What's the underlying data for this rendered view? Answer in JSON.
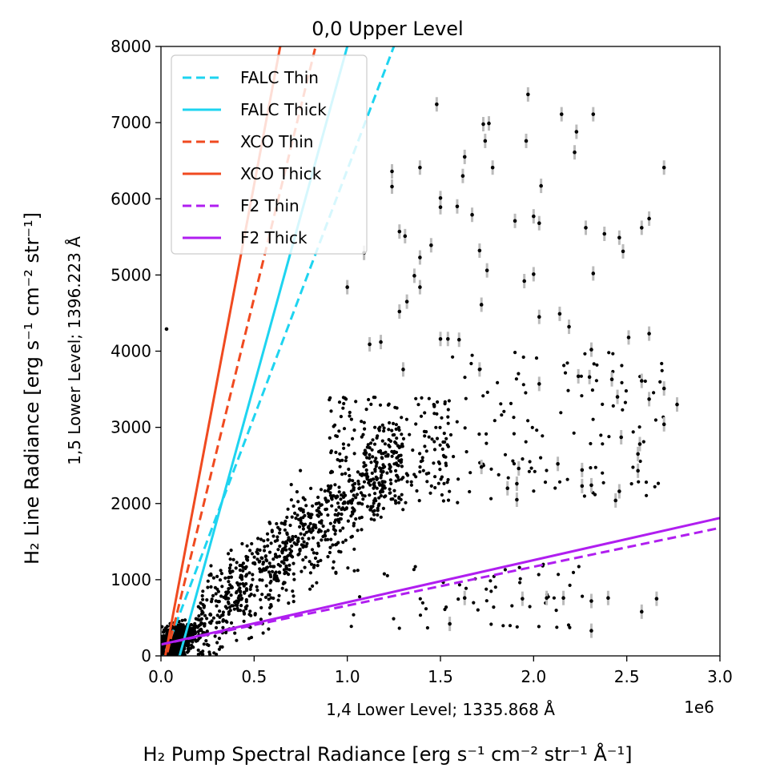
{
  "chart_data": {
    "type": "scatter",
    "title": "0,0 Upper Level",
    "xlabel": "H₂ Pump Spectral Radiance [erg s⁻¹ cm⁻² str⁻¹ Å⁻¹]",
    "xlabel_secondary": "1,4 Lower Level; 1335.868 Å",
    "ylabel": "H₂ Line Radiance [erg s⁻¹ cm⁻² str⁻¹]",
    "ylabel_secondary": "1,5 Lower Level; 1396.223 Å",
    "x_offset_label": "1e6",
    "xlim": [
      0,
      3.0
    ],
    "ylim": [
      0,
      8000
    ],
    "xticks": [
      0.0,
      0.5,
      1.0,
      1.5,
      2.0,
      2.5,
      3.0
    ],
    "xtick_labels": [
      "0.0",
      "0.5",
      "1.0",
      "1.5",
      "2.0",
      "2.5",
      "3.0"
    ],
    "yticks": [
      0,
      1000,
      2000,
      3000,
      4000,
      5000,
      6000,
      7000,
      8000
    ],
    "ytick_labels": [
      "0",
      "1000",
      "2000",
      "3000",
      "4000",
      "5000",
      "6000",
      "7000",
      "8000"
    ],
    "legend_position": "upper-left",
    "lines": [
      {
        "name": "FALC Thin",
        "style": "dashed",
        "color": "#1ed4f0",
        "x": [
          0.0,
          1.25
        ],
        "y": [
          -100,
          8000
        ]
      },
      {
        "name": "FALC Thick",
        "style": "solid",
        "color": "#1ed4f0",
        "x": [
          0.1,
          1.0
        ],
        "y": [
          0,
          8000
        ]
      },
      {
        "name": "XCO Thin",
        "style": "dashed",
        "color": "#f04a20",
        "x": [
          0.0,
          0.83
        ],
        "y": [
          -300,
          8000
        ]
      },
      {
        "name": "XCO Thick",
        "style": "solid",
        "color": "#f04a20",
        "x": [
          0.0,
          0.64
        ],
        "y": [
          -300,
          8000
        ]
      },
      {
        "name": "F2 Thin",
        "style": "dashed",
        "color": "#b01ef0",
        "x": [
          0.0,
          3.0
        ],
        "y": [
          150,
          1680
        ]
      },
      {
        "name": "F2 Thick",
        "style": "solid",
        "color": "#b01ef0",
        "x": [
          0.0,
          3.0
        ],
        "y": [
          150,
          1810
        ]
      }
    ],
    "scatter": {
      "series_name": "observations",
      "point_color": "#000000",
      "errorbar_color": "#bbbbbb",
      "point_count_approx": 2500,
      "labeled_points_with_errorbars": [
        [
          1.97,
          7370
        ],
        [
          1.48,
          7240
        ],
        [
          2.15,
          7110
        ],
        [
          2.32,
          7110
        ],
        [
          1.73,
          6980
        ],
        [
          1.76,
          6990
        ],
        [
          2.23,
          6880
        ],
        [
          1.96,
          6760
        ],
        [
          1.74,
          6760
        ],
        [
          2.22,
          6610
        ],
        [
          1.63,
          6550
        ],
        [
          1.24,
          6360
        ],
        [
          1.39,
          6410
        ],
        [
          1.78,
          6410
        ],
        [
          2.7,
          6410
        ],
        [
          1.62,
          6300
        ],
        [
          2.04,
          6170
        ],
        [
          1.24,
          6160
        ],
        [
          1.5,
          6010
        ],
        [
          1.5,
          5890
        ],
        [
          1.59,
          5900
        ],
        [
          1.67,
          5790
        ],
        [
          2.0,
          5770
        ],
        [
          2.03,
          5680
        ],
        [
          1.9,
          5710
        ],
        [
          2.28,
          5620
        ],
        [
          2.58,
          5620
        ],
        [
          2.62,
          5740
        ],
        [
          2.46,
          5490
        ],
        [
          2.48,
          5310
        ],
        [
          2.38,
          5540
        ],
        [
          1.28,
          5570
        ],
        [
          1.31,
          5510
        ],
        [
          1.45,
          5390
        ],
        [
          1.39,
          5230
        ],
        [
          1.71,
          5320
        ],
        [
          1.75,
          5060
        ],
        [
          1.95,
          4920
        ],
        [
          2.0,
          5010
        ],
        [
          2.32,
          5020
        ],
        [
          1.36,
          4990
        ],
        [
          1.39,
          4840
        ],
        [
          1.0,
          4840
        ],
        [
          1.09,
          5290
        ],
        [
          1.32,
          4650
        ],
        [
          1.28,
          4520
        ],
        [
          1.72,
          4610
        ],
        [
          2.03,
          4450
        ],
        [
          2.14,
          4490
        ],
        [
          2.19,
          4320
        ],
        [
          1.18,
          4120
        ],
        [
          1.12,
          4090
        ],
        [
          1.5,
          4160
        ],
        [
          1.54,
          4160
        ],
        [
          1.6,
          4150
        ],
        [
          2.31,
          4020
        ],
        [
          2.51,
          4180
        ],
        [
          2.62,
          4230
        ],
        [
          1.3,
          3760
        ],
        [
          1.71,
          3760
        ],
        [
          2.03,
          3570
        ],
        [
          2.24,
          3670
        ],
        [
          2.3,
          3660
        ],
        [
          2.42,
          3630
        ],
        [
          2.58,
          3610
        ],
        [
          2.7,
          3510
        ],
        [
          2.45,
          3400
        ],
        [
          2.62,
          3370
        ],
        [
          2.77,
          3300
        ],
        [
          2.7,
          3040
        ],
        [
          1.72,
          2480
        ],
        [
          1.92,
          2460
        ],
        [
          2.13,
          2520
        ],
        [
          2.26,
          2440
        ],
        [
          2.56,
          2430
        ],
        [
          2.56,
          2650
        ],
        [
          2.47,
          2870
        ],
        [
          2.57,
          2780
        ],
        [
          1.91,
          2260
        ],
        [
          2.26,
          2230
        ],
        [
          2.44,
          2040
        ],
        [
          2.31,
          2240
        ],
        [
          2.46,
          2160
        ],
        [
          1.86,
          2200
        ],
        [
          1.91,
          2050
        ],
        [
          1.63,
          760
        ],
        [
          2.4,
          760
        ],
        [
          2.16,
          760
        ],
        [
          2.07,
          760
        ],
        [
          2.31,
          720
        ],
        [
          2.58,
          580
        ],
        [
          2.66,
          750
        ],
        [
          1.94,
          750
        ],
        [
          1.55,
          420
        ],
        [
          2.31,
          330
        ]
      ],
      "outlier": [
        0.03,
        4290
      ]
    }
  }
}
